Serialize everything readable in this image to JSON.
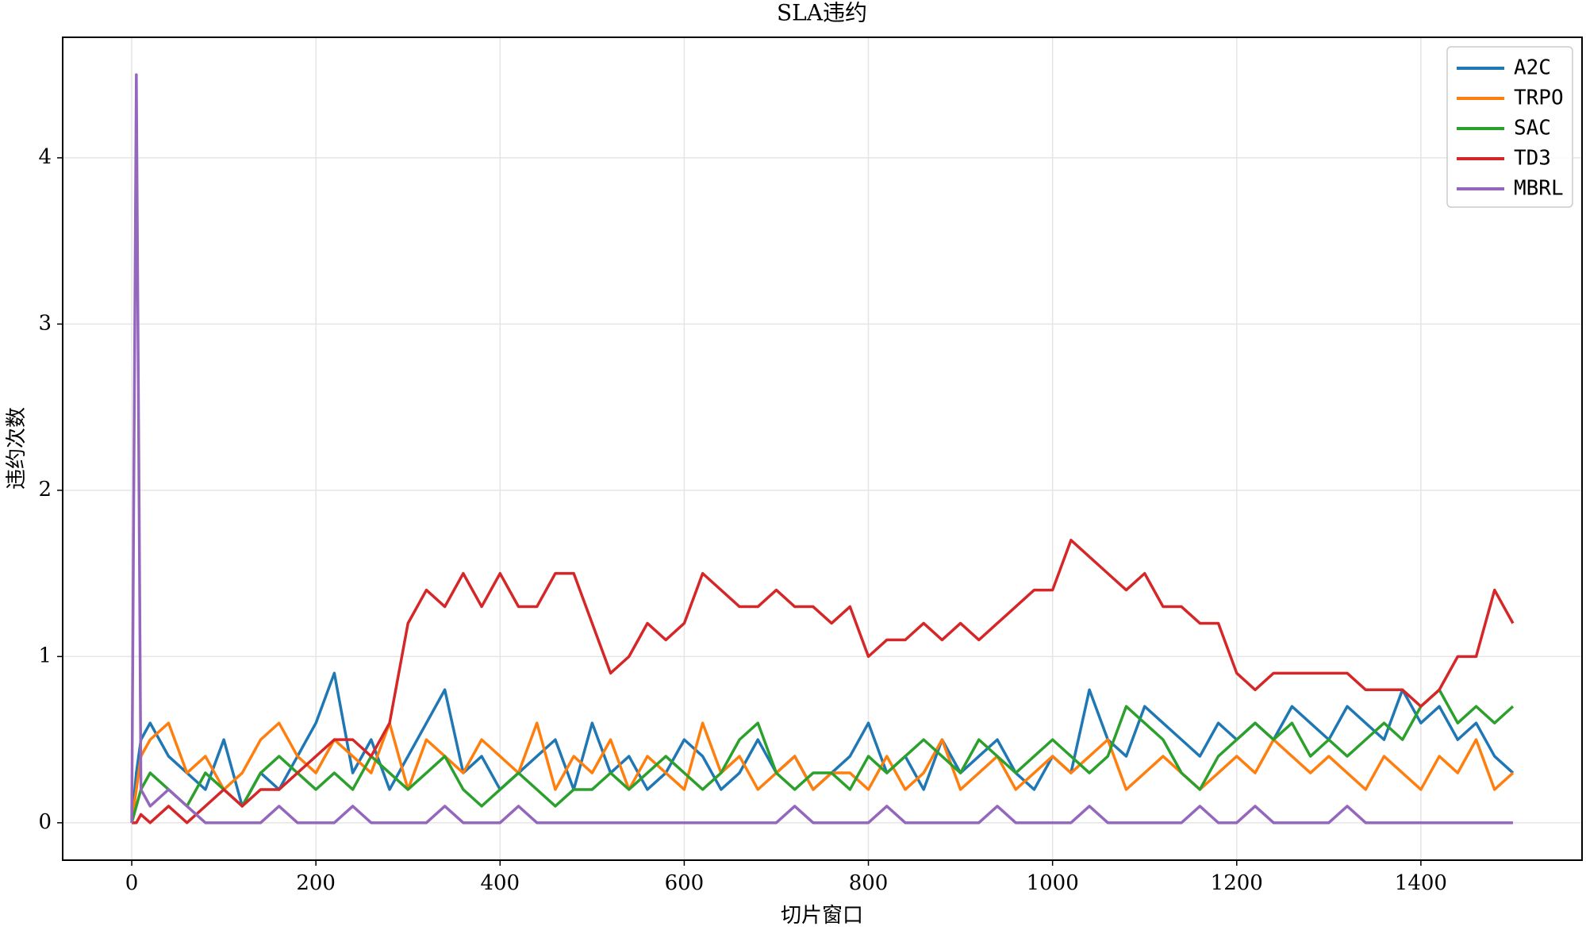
{
  "chart_data": {
    "type": "line",
    "title": "SLA违约",
    "x_label": "切片窗口",
    "y_label": "违约次数",
    "x": [
      0,
      5,
      10,
      20,
      40,
      60,
      80,
      100,
      120,
      140,
      160,
      180,
      200,
      220,
      240,
      260,
      280,
      300,
      320,
      340,
      360,
      380,
      400,
      420,
      440,
      460,
      480,
      500,
      520,
      540,
      560,
      580,
      600,
      620,
      640,
      660,
      680,
      700,
      720,
      740,
      760,
      780,
      800,
      820,
      840,
      860,
      880,
      900,
      920,
      940,
      960,
      980,
      1000,
      1020,
      1040,
      1060,
      1080,
      1100,
      1120,
      1140,
      1160,
      1180,
      1200,
      1220,
      1240,
      1260,
      1280,
      1300,
      1320,
      1340,
      1360,
      1380,
      1400,
      1420,
      1440,
      1460,
      1480,
      1500
    ],
    "series": [
      {
        "name": "A2C",
        "color": "#1f77b4",
        "values": [
          0,
          0.3,
          0.5,
          0.6,
          0.4,
          0.3,
          0.2,
          0.5,
          0.1,
          0.3,
          0.2,
          0.4,
          0.6,
          0.9,
          0.3,
          0.5,
          0.2,
          0.4,
          0.6,
          0.8,
          0.3,
          0.4,
          0.2,
          0.3,
          0.4,
          0.5,
          0.2,
          0.6,
          0.3,
          0.4,
          0.2,
          0.3,
          0.5,
          0.4,
          0.2,
          0.3,
          0.5,
          0.3,
          0.4,
          0.2,
          0.3,
          0.4,
          0.6,
          0.3,
          0.4,
          0.2,
          0.5,
          0.3,
          0.4,
          0.5,
          0.3,
          0.2,
          0.4,
          0.3,
          0.8,
          0.5,
          0.4,
          0.7,
          0.6,
          0.5,
          0.4,
          0.6,
          0.5,
          0.6,
          0.5,
          0.7,
          0.6,
          0.5,
          0.7,
          0.6,
          0.5,
          0.8,
          0.6,
          0.7,
          0.5,
          0.6,
          0.4,
          0.3
        ]
      },
      {
        "name": "TRPO",
        "color": "#ff7f0e",
        "values": [
          0,
          0.2,
          0.4,
          0.5,
          0.6,
          0.3,
          0.4,
          0.2,
          0.3,
          0.5,
          0.6,
          0.4,
          0.3,
          0.5,
          0.4,
          0.3,
          0.6,
          0.2,
          0.5,
          0.4,
          0.3,
          0.5,
          0.4,
          0.3,
          0.6,
          0.2,
          0.4,
          0.3,
          0.5,
          0.2,
          0.4,
          0.3,
          0.2,
          0.6,
          0.3,
          0.4,
          0.2,
          0.3,
          0.4,
          0.2,
          0.3,
          0.3,
          0.2,
          0.4,
          0.2,
          0.3,
          0.5,
          0.2,
          0.3,
          0.4,
          0.2,
          0.3,
          0.4,
          0.3,
          0.4,
          0.5,
          0.2,
          0.3,
          0.4,
          0.3,
          0.2,
          0.3,
          0.4,
          0.3,
          0.5,
          0.4,
          0.3,
          0.4,
          0.3,
          0.2,
          0.4,
          0.3,
          0.2,
          0.4,
          0.3,
          0.5,
          0.2,
          0.3
        ]
      },
      {
        "name": "SAC",
        "color": "#2ca02c",
        "values": [
          0,
          0.1,
          0.2,
          0.3,
          0.2,
          0.1,
          0.3,
          0.2,
          0.1,
          0.3,
          0.4,
          0.3,
          0.2,
          0.3,
          0.2,
          0.4,
          0.3,
          0.2,
          0.3,
          0.4,
          0.2,
          0.1,
          0.2,
          0.3,
          0.2,
          0.1,
          0.2,
          0.2,
          0.3,
          0.2,
          0.3,
          0.4,
          0.3,
          0.2,
          0.3,
          0.5,
          0.6,
          0.3,
          0.2,
          0.3,
          0.3,
          0.2,
          0.4,
          0.3,
          0.4,
          0.5,
          0.4,
          0.3,
          0.5,
          0.4,
          0.3,
          0.4,
          0.5,
          0.4,
          0.3,
          0.4,
          0.7,
          0.6,
          0.5,
          0.3,
          0.2,
          0.4,
          0.5,
          0.6,
          0.5,
          0.6,
          0.4,
          0.5,
          0.4,
          0.5,
          0.6,
          0.5,
          0.7,
          0.8,
          0.6,
          0.7,
          0.6,
          0.7
        ]
      },
      {
        "name": "TD3",
        "color": "#d62728",
        "values": [
          0,
          0,
          0.05,
          0,
          0.1,
          0,
          0.1,
          0.2,
          0.1,
          0.2,
          0.2,
          0.3,
          0.4,
          0.5,
          0.5,
          0.4,
          0.6,
          1.2,
          1.4,
          1.3,
          1.5,
          1.3,
          1.5,
          1.3,
          1.3,
          1.5,
          1.5,
          1.2,
          0.9,
          1.0,
          1.2,
          1.1,
          1.2,
          1.5,
          1.4,
          1.3,
          1.3,
          1.4,
          1.3,
          1.3,
          1.2,
          1.3,
          1.0,
          1.1,
          1.1,
          1.2,
          1.1,
          1.2,
          1.1,
          1.2,
          1.3,
          1.4,
          1.4,
          1.7,
          1.6,
          1.5,
          1.4,
          1.5,
          1.3,
          1.3,
          1.2,
          1.2,
          0.9,
          0.8,
          0.9,
          0.9,
          0.9,
          0.9,
          0.9,
          0.8,
          0.8,
          0.8,
          0.7,
          0.8,
          1.0,
          1.0,
          1.4,
          1.2
        ]
      },
      {
        "name": "MBRL",
        "color": "#9467bd",
        "values": [
          0,
          4.5,
          0.2,
          0.1,
          0.2,
          0.1,
          0,
          0,
          0,
          0,
          0.1,
          0,
          0,
          0,
          0.1,
          0,
          0,
          0,
          0,
          0.1,
          0,
          0,
          0,
          0.1,
          0,
          0,
          0,
          0,
          0,
          0,
          0,
          0,
          0,
          0,
          0,
          0,
          0,
          0,
          0.1,
          0,
          0,
          0,
          0,
          0.1,
          0,
          0,
          0,
          0,
          0,
          0.1,
          0,
          0,
          0,
          0,
          0.1,
          0,
          0,
          0,
          0,
          0,
          0.1,
          0,
          0,
          0.1,
          0,
          0,
          0,
          0,
          0.1,
          0,
          0,
          0,
          0,
          0,
          0,
          0,
          0,
          0
        ]
      }
    ],
    "xlim": [
      -75,
      1575
    ],
    "ylim": [
      -0.225,
      4.725
    ],
    "xticks": [
      0,
      200,
      400,
      600,
      800,
      1000,
      1200,
      1400
    ],
    "yticks": [
      0,
      1,
      2,
      3,
      4
    ],
    "grid": true,
    "legend": "upper right"
  }
}
